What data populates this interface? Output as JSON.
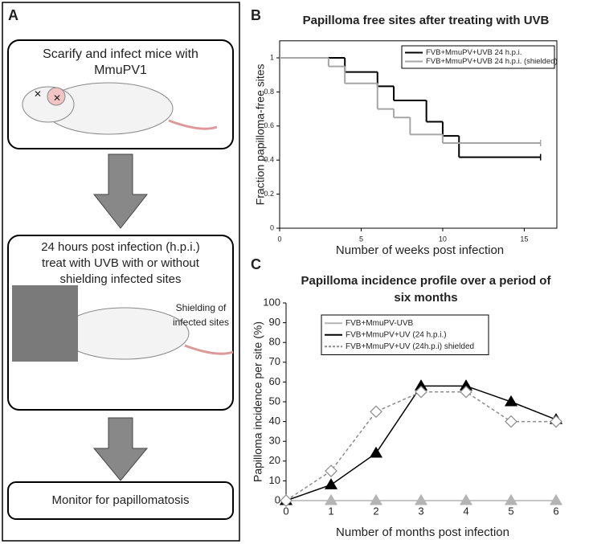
{
  "panel_a": {
    "label": "A",
    "steps": [
      {
        "lines": [
          "Scarify and infect mice with",
          "MmuPV1"
        ]
      },
      {
        "lines": [
          "24 hours post infection (h.p.i.)",
          "treat with UVB with or without",
          "shielding infected sites"
        ],
        "note": [
          "Shielding of",
          "infected sites"
        ]
      },
      {
        "lines": [
          "Monitor for papillomatosis"
        ]
      }
    ]
  },
  "chart_data": [
    {
      "type": "step",
      "panel_label": "B",
      "title": [
        "Papilloma free sites after treating with UVB"
      ],
      "xlabel": "Number of weeks post infection",
      "ylabel": "Fraction papilloma-free sites",
      "xlim": [
        0,
        17
      ],
      "ylim": [
        0,
        1.1
      ],
      "xticks": [
        0,
        5,
        10,
        15
      ],
      "yticks": [
        0,
        0.2,
        0.4,
        0.6,
        0.8,
        1
      ],
      "series": [
        {
          "name": "FVB+MmuPV+UVB 24 h.p.i.",
          "color": "#000000",
          "x": [
            0,
            4,
            6,
            7,
            9,
            10,
            11,
            16
          ],
          "values": [
            1,
            0.917,
            0.833,
            0.75,
            0.625,
            0.542,
            0.417,
            0.417
          ]
        },
        {
          "name": "FVB+MmuPV+UVB 24 h.p.i. (shielded)",
          "color": "#a6a6a6",
          "x": [
            0,
            3,
            4,
            6,
            7,
            8,
            10,
            16
          ],
          "values": [
            1,
            0.95,
            0.85,
            0.7,
            0.65,
            0.55,
            0.5,
            0.5
          ]
        }
      ]
    },
    {
      "type": "line",
      "panel_label": "C",
      "title": [
        "Papilloma incidence profile over a period of",
        "six months"
      ],
      "xlabel": "Number of months post infection",
      "ylabel": "Papilloma incidence per site (%)",
      "xlim": [
        0,
        6
      ],
      "ylim": [
        0,
        100
      ],
      "xticks": [
        0,
        1,
        2,
        3,
        4,
        5,
        6
      ],
      "yticks": [
        0,
        10,
        20,
        30,
        40,
        50,
        60,
        70,
        80,
        90,
        100
      ],
      "series": [
        {
          "name": "FVB+MmuPV-UVB",
          "color": "#b4b4b4",
          "marker": "triangle",
          "dashed": false,
          "x": [
            0,
            1,
            2,
            3,
            4,
            5,
            6
          ],
          "values": [
            0,
            0,
            0,
            0,
            0,
            0,
            0
          ]
        },
        {
          "name": "FVB+MmuPV+UV (24 h.p.i.)",
          "color": "#000000",
          "marker": "triangle",
          "dashed": false,
          "x": [
            0,
            1,
            2,
            3,
            4,
            5,
            6
          ],
          "values": [
            0,
            8,
            24,
            58,
            58,
            50,
            41
          ]
        },
        {
          "name": "FVB+MmuPV+UV (24h.p.i) shielded",
          "color": "#8c8c8c",
          "marker": "diamond",
          "dashed": true,
          "x": [
            0,
            1,
            2,
            3,
            4,
            5,
            6
          ],
          "values": [
            0,
            15,
            45,
            55,
            55,
            40,
            40
          ]
        }
      ]
    }
  ]
}
